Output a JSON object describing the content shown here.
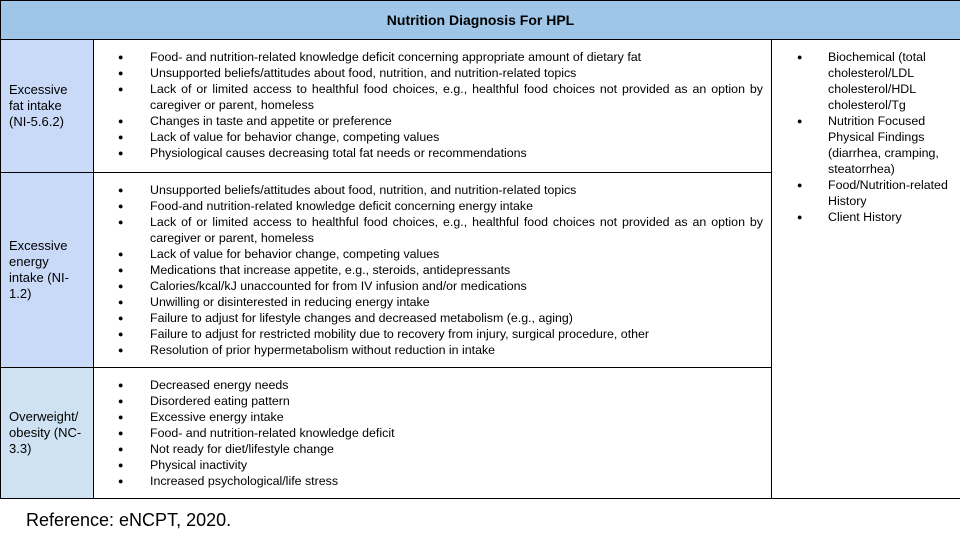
{
  "table": {
    "title": "Nutrition Diagnosis For HPL",
    "rows": [
      {
        "diagnosis": "Excessive fat intake (NI-5.6.2)",
        "etiologies": [
          "Food- and nutrition-related knowledge deficit concerning appropriate amount of dietary fat",
          "Unsupported beliefs/attitudes about food, nutrition, and nutrition-related topics",
          "Lack of or limited access to healthful food choices, e.g., healthful food choices not provided as an option by caregiver or parent, homeless",
          "Changes in taste and appetite or preference",
          "Lack of value for behavior change, competing values",
          "Physiological causes decreasing total fat needs or recommendations"
        ]
      },
      {
        "diagnosis": "Excessive energy intake (NI-1.2)",
        "etiologies": [
          "Unsupported beliefs/attitudes about food, nutrition, and nutrition-related topics",
          "Food-and nutrition-related knowledge deficit concerning energy intake",
          "Lack of or limited access to healthful food choices, e.g., healthful food choices not provided as an option by caregiver or parent, homeless",
          "Lack of value for behavior change, competing values",
          "Medications that increase appetite, e.g., steroids, antidepressants",
          "Calories/kcal/kJ unaccounted for from IV infusion and/or medications",
          "Unwilling or disinterested in reducing energy intake",
          "Failure to adjust for lifestyle changes and decreased metabolism (e.g., aging)",
          "Failure to adjust for restricted mobility due to recovery from injury, surgical procedure, other",
          "Resolution of prior hypermetabolism without reduction in intake"
        ]
      },
      {
        "diagnosis": "Overweight/ obesity (NC-3.3)",
        "etiologies": [
          "Decreased energy needs",
          "Disordered eating pattern",
          "Excessive energy intake",
          "Food- and nutrition-related knowledge deficit",
          "Not ready for diet/lifestyle change",
          "Physical inactivity",
          "Increased psychological/life stress"
        ]
      }
    ],
    "signs_symptoms": [
      "Biochemical (total cholesterol/LDL cholesterol/HDL cholesterol/Tg",
      "Nutrition Focused Physical Findings (diarrhea, cramping, steatorrhea)",
      "Food/Nutrition-related History",
      "Client History"
    ]
  },
  "reference": "Reference: eNCPT, 2020."
}
